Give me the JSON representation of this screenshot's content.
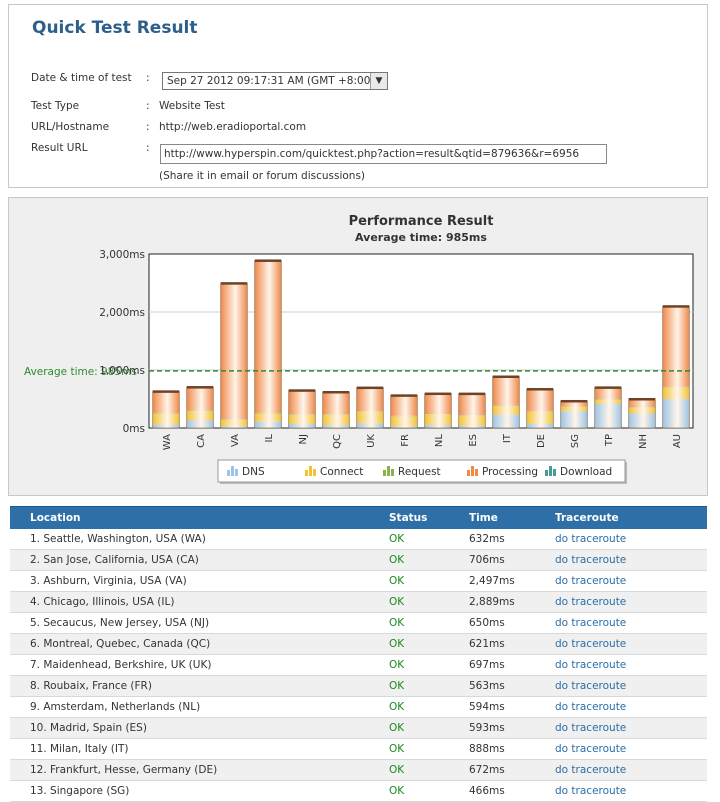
{
  "header": {
    "title": "Quick Test Result",
    "fields": {
      "datetime_label": "Date & time of test",
      "datetime_value": "Sep 27 2012 09:17:31 AM (GMT +8:00)",
      "testtype_label": "Test Type",
      "testtype_value": "Website Test",
      "url_label": "URL/Hostname",
      "url_value": "http://web.eradioportal.com",
      "resulturl_label": "Result URL",
      "resulturl_value": "http://www.hyperspin.com/quicktest.php?action=result&qtid=879636&r=6956",
      "share_note": "(Share it in email or forum discussions)",
      "colon": ":"
    }
  },
  "chart_data": {
    "type": "bar",
    "stacked": true,
    "title": "Performance Result",
    "subtitle": "Average time: 985ms",
    "average_label": "Average time: 985ms",
    "average_value": 985,
    "ylim": [
      0,
      3000
    ],
    "yticks": [
      0,
      1000,
      2000,
      3000
    ],
    "ytick_labels": [
      "0ms",
      "1,000ms",
      "2,000ms",
      "3,000ms"
    ],
    "categories": [
      "WA",
      "CA",
      "VA",
      "IL",
      "NJ",
      "QC",
      "UK",
      "FR",
      "NL",
      "ES",
      "IT",
      "DE",
      "SG",
      "TP",
      "NH",
      "AU"
    ],
    "grid": true,
    "legend_position": "bottom",
    "series": [
      {
        "name": "DNS",
        "color": "#9cc4e6",
        "values": [
          60,
          130,
          30,
          110,
          70,
          50,
          80,
          30,
          50,
          40,
          230,
          70,
          290,
          420,
          250,
          500
        ]
      },
      {
        "name": "Connect",
        "color": "#f2c230",
        "values": [
          190,
          160,
          110,
          140,
          160,
          180,
          200,
          170,
          190,
          170,
          150,
          210,
          80,
          70,
          100,
          200
        ]
      },
      {
        "name": "Request",
        "color": "#8db04e",
        "values": [
          10,
          10,
          10,
          10,
          10,
          10,
          10,
          10,
          10,
          10,
          10,
          10,
          10,
          10,
          10,
          10
        ]
      },
      {
        "name": "Processing",
        "color": "#f0894a",
        "values": [
          372,
          406,
          2347,
          2629,
          410,
          381,
          407,
          353,
          344,
          373,
          498,
          382,
          86,
          200,
          140,
          1390
        ]
      },
      {
        "name": "Download",
        "color": "#4a9a9a",
        "values": [
          0,
          0,
          0,
          0,
          0,
          0,
          0,
          0,
          0,
          0,
          0,
          0,
          0,
          0,
          0,
          0
        ]
      }
    ]
  },
  "table": {
    "headers": [
      "Location",
      "Status",
      "Time",
      "Traceroute"
    ],
    "rows": [
      {
        "location": "1. Seattle, Washington, USA (WA)",
        "status": "OK",
        "time": "632ms",
        "trace": "do traceroute"
      },
      {
        "location": "2. San Jose, California, USA (CA)",
        "status": "OK",
        "time": "706ms",
        "trace": "do traceroute"
      },
      {
        "location": "3. Ashburn, Virginia, USA (VA)",
        "status": "OK",
        "time": "2,497ms",
        "trace": "do traceroute"
      },
      {
        "location": "4. Chicago, Illinois, USA (IL)",
        "status": "OK",
        "time": "2,889ms",
        "trace": "do traceroute"
      },
      {
        "location": "5. Secaucus, New Jersey, USA (NJ)",
        "status": "OK",
        "time": "650ms",
        "trace": "do traceroute"
      },
      {
        "location": "6. Montreal, Quebec, Canada (QC)",
        "status": "OK",
        "time": "621ms",
        "trace": "do traceroute"
      },
      {
        "location": "7. Maidenhead, Berkshire, UK (UK)",
        "status": "OK",
        "time": "697ms",
        "trace": "do traceroute"
      },
      {
        "location": "8. Roubaix, France (FR)",
        "status": "OK",
        "time": "563ms",
        "trace": "do traceroute"
      },
      {
        "location": "9. Amsterdam, Netherlands (NL)",
        "status": "OK",
        "time": "594ms",
        "trace": "do traceroute"
      },
      {
        "location": "10. Madrid, Spain (ES)",
        "status": "OK",
        "time": "593ms",
        "trace": "do traceroute"
      },
      {
        "location": "11. Milan, Italy (IT)",
        "status": "OK",
        "time": "888ms",
        "trace": "do traceroute"
      },
      {
        "location": "12. Frankfurt, Hesse, Germany (DE)",
        "status": "OK",
        "time": "672ms",
        "trace": "do traceroute"
      },
      {
        "location": "13. Singapore (SG)",
        "status": "OK",
        "time": "466ms",
        "trace": "do traceroute"
      }
    ]
  }
}
